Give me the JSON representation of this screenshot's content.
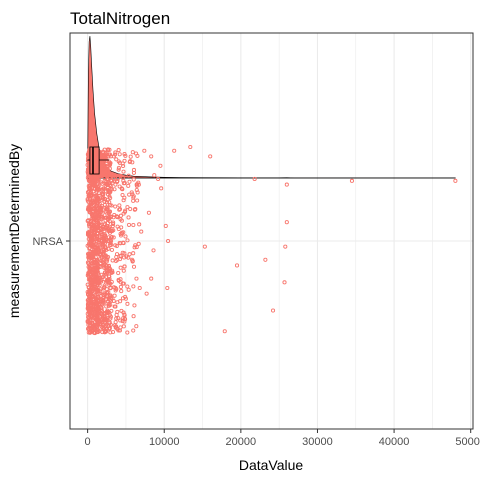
{
  "chart_data": {
    "type": "scatter",
    "title": "TotalNitrogen",
    "xlabel": "DataValue",
    "ylabel": "measurementDeterminedBy",
    "categories": [
      "NRSA"
    ],
    "xlim": [
      -2300,
      50300
    ],
    "xticks": [
      0,
      10000,
      20000,
      30000,
      40000,
      50000
    ],
    "xtick_labels": [
      "0",
      "10000",
      "20000",
      "30000",
      "40000",
      "50000"
    ],
    "grid": true,
    "point_color": "#F8766D",
    "density_color": "#F8766D",
    "boxplot": {
      "q1": 300,
      "median": 700,
      "q3": 1500,
      "whisker_low": 0,
      "whisker_high": 2800
    },
    "density": [
      [
        0,
        0.03
      ],
      [
        100,
        0.75
      ],
      [
        200,
        0.96
      ],
      [
        300,
        1.0
      ],
      [
        400,
        0.93
      ],
      [
        500,
        0.82
      ],
      [
        700,
        0.62
      ],
      [
        900,
        0.46
      ],
      [
        1200,
        0.31
      ],
      [
        1500,
        0.21
      ],
      [
        2000,
        0.12
      ],
      [
        2500,
        0.075
      ],
      [
        3000,
        0.05
      ],
      [
        4000,
        0.03
      ],
      [
        5000,
        0.02
      ],
      [
        6000,
        0.013
      ],
      [
        8000,
        0.008
      ],
      [
        10000,
        0.005
      ],
      [
        12000,
        0.003
      ],
      [
        15000,
        0.002
      ],
      [
        20000,
        0.0015
      ],
      [
        25000,
        0.001
      ],
      [
        26000,
        0.002
      ],
      [
        27000,
        0.0008
      ],
      [
        35000,
        0.0005
      ],
      [
        48000,
        0.0003
      ]
    ],
    "outliers": [
      {
        "x": 48000,
        "jitter": 0.32
      },
      {
        "x": 34500,
        "jitter": 0.32
      },
      {
        "x": 26000,
        "jitter": 0.3
      },
      {
        "x": 21800,
        "jitter": 0.33
      },
      {
        "x": 26000,
        "jitter": 0.1
      },
      {
        "x": 25800,
        "jitter": -0.03
      },
      {
        "x": 25700,
        "jitter": -0.22
      },
      {
        "x": 24200,
        "jitter": -0.37
      },
      {
        "x": 23200,
        "jitter": -0.1
      },
      {
        "x": 19500,
        "jitter": -0.13
      },
      {
        "x": 17900,
        "jitter": -0.48
      },
      {
        "x": 15300,
        "jitter": -0.03
      },
      {
        "x": 16000,
        "jitter": 0.45
      },
      {
        "x": 13400,
        "jitter": 0.5
      },
      {
        "x": 11300,
        "jitter": 0.48
      },
      {
        "x": 9500,
        "jitter": 0.4
      },
      {
        "x": 9200,
        "jitter": 0.33
      },
      {
        "x": 9600,
        "jitter": 0.28
      },
      {
        "x": 8700,
        "jitter": 0.35
      },
      {
        "x": 8300,
        "jitter": 0.45
      },
      {
        "x": 7400,
        "jitter": 0.48
      },
      {
        "x": 10200,
        "jitter": 0.08
      },
      {
        "x": 8600,
        "jitter": -0.05
      },
      {
        "x": 8300,
        "jitter": -0.2
      },
      {
        "x": 7700,
        "jitter": -0.28
      },
      {
        "x": 8000,
        "jitter": 0.15
      },
      {
        "x": 7000,
        "jitter": 0.05
      },
      {
        "x": 6800,
        "jitter": -0.25
      },
      {
        "x": 10400,
        "jitter": -0.25
      },
      {
        "x": 10500,
        "jitter": 0.0
      },
      {
        "x": 6400,
        "jitter": 0.3
      },
      {
        "x": 6000,
        "jitter": -0.4
      },
      {
        "x": 5500,
        "jitter": 0.42
      },
      {
        "x": 5200,
        "jitter": 0.18
      },
      {
        "x": 5800,
        "jitter": -0.1
      }
    ]
  }
}
